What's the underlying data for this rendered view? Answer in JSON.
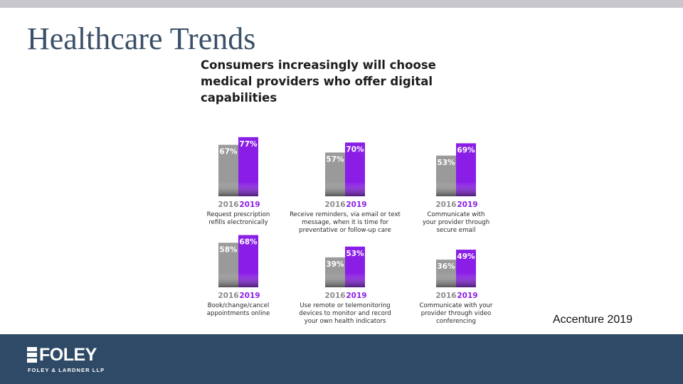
{
  "slide": {
    "title": "Healthcare Trends",
    "source": "Accenture 2019"
  },
  "infographic": {
    "heading_lines": [
      "Consumers increasingly will choose",
      "medical providers who offer digital",
      "capabilities"
    ]
  },
  "colors": {
    "bar_2016": "#9a9a9a",
    "bar_2019": "#8a1ee6",
    "label_2016": "#8c8c8c",
    "label_2019": "#8a1ee6",
    "title": "#3b5068",
    "footer": "#2f4a66"
  },
  "chart_data": {
    "type": "bar",
    "title": "Consumers increasingly will choose medical providers who offer digital capabilities",
    "ylim": [
      0,
      100
    ],
    "series": [
      {
        "name": "2016",
        "values": [
          67,
          57,
          53,
          58,
          39,
          36
        ]
      },
      {
        "name": "2019",
        "values": [
          77,
          70,
          69,
          68,
          53,
          49
        ]
      }
    ],
    "panels": [
      {
        "caption": [
          "Request prescription",
          "refills electronically"
        ],
        "values": {
          "2016": 67,
          "2019": 77
        }
      },
      {
        "caption": [
          "Receive reminders, via email or text",
          "message, when it is time for",
          "preventative or follow-up care"
        ],
        "values": {
          "2016": 57,
          "2019": 70
        }
      },
      {
        "caption": [
          "Communicate with",
          "your provider through",
          "secure email"
        ],
        "values": {
          "2016": 53,
          "2019": 69
        }
      },
      {
        "caption": [
          "Book/change/cancel",
          "appointments online"
        ],
        "values": {
          "2016": 58,
          "2019": 68
        }
      },
      {
        "caption": [
          "Use remote or telemonitoring",
          "devices to monitor and record",
          "your own health indicators"
        ],
        "values": {
          "2016": 39,
          "2019": 53
        }
      },
      {
        "caption": [
          "Communicate with your",
          "provider through video",
          "conferencing"
        ],
        "values": {
          "2016": 36,
          "2019": 49
        }
      }
    ],
    "value_suffix": "%"
  },
  "footer": {
    "logo_text": "FOLEY",
    "logo_subtext": "FOLEY & LARDNER LLP"
  }
}
